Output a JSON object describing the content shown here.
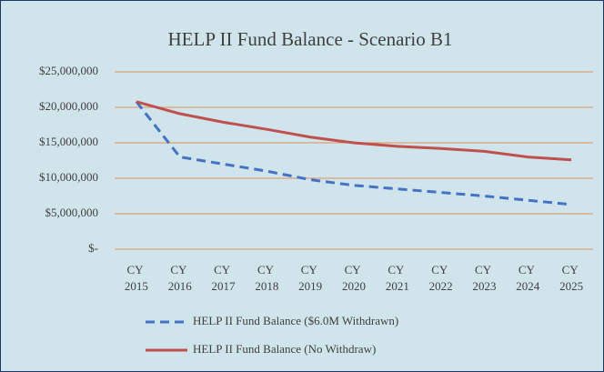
{
  "chart_data": {
    "type": "line",
    "title": "HELP II Fund Balance - Scenario B1",
    "categories": [
      "CY 2015",
      "CY 2016",
      "CY 2017",
      "CY 2018",
      "CY 2019",
      "CY 2020",
      "CY 2021",
      "CY 2022",
      "CY 2023",
      "CY 2024",
      "CY 2025"
    ],
    "series": [
      {
        "name": "HELP II Fund Balance ($6.0M Withdrawn)",
        "color": "#4472c4",
        "dashed": true,
        "values": [
          20800000,
          13000000,
          12000000,
          11000000,
          9800000,
          9000000,
          8500000,
          8000000,
          7500000,
          6900000,
          6300000
        ]
      },
      {
        "name": "HELP II Fund Balance (No Withdraw)",
        "color": "#c0504d",
        "dashed": false,
        "values": [
          20800000,
          19100000,
          17900000,
          16900000,
          15800000,
          15000000,
          14500000,
          14200000,
          13800000,
          13000000,
          12600000
        ]
      }
    ],
    "ylim": [
      0,
      25000000
    ],
    "yticks": [
      {
        "value": 0,
        "label": "$-"
      },
      {
        "value": 5000000,
        "label": "$5,000,000"
      },
      {
        "value": 10000000,
        "label": "$10,000,000"
      },
      {
        "value": 15000000,
        "label": "$15,000,000"
      },
      {
        "value": 20000000,
        "label": "$20,000,000"
      },
      {
        "value": 25000000,
        "label": "$25,000,000"
      }
    ],
    "grid": true
  }
}
